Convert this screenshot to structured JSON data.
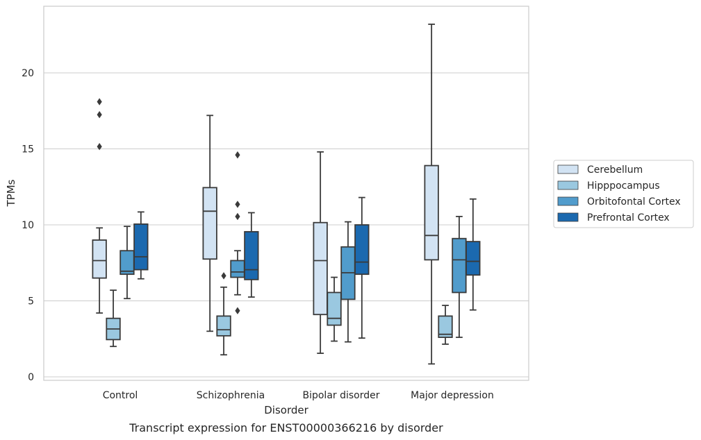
{
  "chart_data": {
    "type": "box",
    "title": "",
    "caption": "Transcript expression for ENST00000366216 by disorder",
    "xlabel": "Disorder",
    "ylabel": "TPMs",
    "ylim": [
      -0.1,
      24.3
    ],
    "yticks": [
      0,
      5,
      10,
      15,
      20
    ],
    "grid": "horizontal",
    "legend_position": "right",
    "categories": [
      "Control",
      "Schizophrenia",
      "Bipolar disorder",
      "Major depression"
    ],
    "series": [
      {
        "name": "Cerebellum",
        "color": "#d2e3f3",
        "boxes": [
          {
            "min": 4.2,
            "q1": 6.5,
            "median": 7.65,
            "q3": 9.0,
            "max": 9.8,
            "outliers": [
              15.15,
              17.25,
              18.1
            ]
          },
          {
            "min": 3.0,
            "q1": 7.75,
            "median": 10.9,
            "q3": 12.45,
            "max": 17.2,
            "outliers": []
          },
          {
            "min": 1.55,
            "q1": 4.1,
            "median": 7.65,
            "q3": 10.15,
            "max": 14.8,
            "outliers": []
          },
          {
            "min": 0.85,
            "q1": 7.7,
            "median": 9.3,
            "q3": 13.9,
            "max": 23.2,
            "outliers": []
          }
        ]
      },
      {
        "name": "Hipppocampus",
        "color": "#9ac8e0",
        "boxes": [
          {
            "min": 2.0,
            "q1": 2.45,
            "median": 3.15,
            "q3": 3.85,
            "max": 5.7,
            "outliers": []
          },
          {
            "min": 1.45,
            "q1": 2.7,
            "median": 3.1,
            "q3": 4.0,
            "max": 5.9,
            "outliers": [
              6.65
            ]
          },
          {
            "min": 2.35,
            "q1": 3.4,
            "median": 3.85,
            "q3": 5.55,
            "max": 6.55,
            "outliers": []
          },
          {
            "min": 2.15,
            "q1": 2.6,
            "median": 2.8,
            "q3": 4.0,
            "max": 4.7,
            "outliers": []
          }
        ]
      },
      {
        "name": "Orbitofontal Cortex",
        "color": "#519ccc",
        "boxes": [
          {
            "min": 5.15,
            "q1": 6.75,
            "median": 6.95,
            "q3": 8.3,
            "max": 9.9,
            "outliers": []
          },
          {
            "min": 5.4,
            "q1": 6.55,
            "median": 6.9,
            "q3": 7.65,
            "max": 8.3,
            "outliers": [
              4.35,
              10.55,
              11.35,
              14.6
            ]
          },
          {
            "min": 2.3,
            "q1": 5.1,
            "median": 6.85,
            "q3": 8.55,
            "max": 10.2,
            "outliers": []
          },
          {
            "min": 2.6,
            "q1": 5.55,
            "median": 7.7,
            "q3": 9.1,
            "max": 10.55,
            "outliers": []
          }
        ]
      },
      {
        "name": "Prefrontal Cortex",
        "color": "#1b69af",
        "boxes": [
          {
            "min": 6.45,
            "q1": 7.05,
            "median": 7.9,
            "q3": 10.05,
            "max": 10.85,
            "outliers": []
          },
          {
            "min": 5.25,
            "q1": 6.4,
            "median": 7.05,
            "q3": 9.55,
            "max": 10.8,
            "outliers": []
          },
          {
            "min": 2.55,
            "q1": 6.75,
            "median": 7.55,
            "q3": 10.0,
            "max": 11.8,
            "outliers": []
          },
          {
            "min": 4.4,
            "q1": 6.7,
            "median": 7.6,
            "q3": 8.9,
            "max": 11.7,
            "outliers": []
          }
        ]
      }
    ]
  }
}
